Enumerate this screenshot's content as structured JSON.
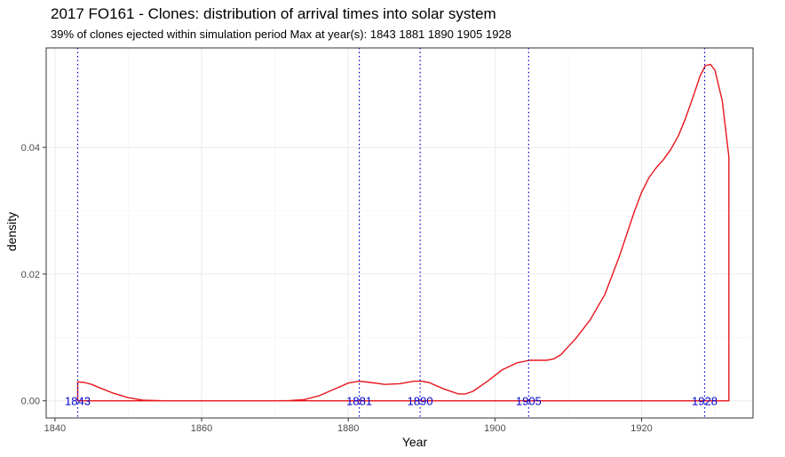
{
  "chart_data": {
    "type": "area",
    "title": "2017 FO161 - Clones: distribution of arrival times into solar system",
    "subtitle": "39% of clones ejected within simulation period Max at year(s): 1843 1881 1890 1905 1928",
    "xlabel": "Year",
    "ylabel": "density",
    "xlim": [
      1838.8,
      1935.2
    ],
    "ylim": [
      -0.0027,
      0.0557
    ],
    "x_ticks": [
      1840,
      1860,
      1880,
      1900,
      1920
    ],
    "y_ticks": [
      0.0,
      0.02,
      0.04
    ],
    "y_tick_labels": [
      "0.00",
      "0.02",
      "0.04"
    ],
    "grid": true,
    "series": [
      {
        "color": "#e8141c",
        "x": [
          1843.1,
          1843.1,
          1844,
          1845,
          1846,
          1848,
          1850,
          1852,
          1855,
          1860,
          1865,
          1870,
          1872,
          1874,
          1876,
          1878,
          1880,
          1881.5,
          1883,
          1885,
          1887,
          1889,
          1890,
          1891,
          1893,
          1895,
          1896,
          1897,
          1899,
          1901,
          1903,
          1904.7,
          1906,
          1907,
          1908,
          1909,
          1911,
          1913,
          1915,
          1917,
          1919,
          1920,
          1921,
          1922,
          1923,
          1924,
          1925,
          1926,
          1927,
          1928,
          1928.7,
          1929.4,
          1930,
          1931,
          1931.9,
          1931.9
        ],
        "y": [
          0,
          0.003,
          0.0029,
          0.0026,
          0.0021,
          0.0012,
          0.0005,
          0.0001,
          0,
          0,
          0,
          0,
          5e-05,
          0.0002,
          0.0008,
          0.0018,
          0.0028,
          0.0031,
          0.0029,
          0.0026,
          0.0027,
          0.0031,
          0.0031,
          0.0029,
          0.0019,
          0.0011,
          0.0011,
          0.0015,
          0.0031,
          0.0049,
          0.006,
          0.0064,
          0.0064,
          0.0064,
          0.0066,
          0.0073,
          0.0098,
          0.0128,
          0.0168,
          0.0229,
          0.0298,
          0.0329,
          0.0352,
          0.0368,
          0.0381,
          0.0397,
          0.0418,
          0.0446,
          0.0479,
          0.0513,
          0.0529,
          0.0531,
          0.0522,
          0.0474,
          0.0385,
          0
        ]
      }
    ],
    "vlines": {
      "color": "#0000cc",
      "style": "dotted",
      "x": [
        1843.1,
        1881.5,
        1889.8,
        1904.6,
        1928.6
      ],
      "labels": [
        "1843",
        "1881",
        "1890",
        "1905",
        "1928"
      ]
    }
  }
}
